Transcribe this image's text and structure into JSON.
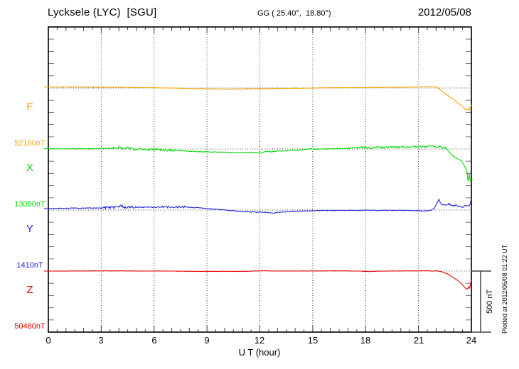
{
  "header": {
    "station": "Lycksele (LYC)  [SGU]",
    "coordinates": "GG ( 25.40°,  18.80°)",
    "date": "2012/05/08"
  },
  "xaxis": {
    "label": "U T (hour)",
    "ticks": [
      "0",
      "3",
      "6",
      "9",
      "12",
      "15",
      "18",
      "21",
      "24"
    ]
  },
  "scalebar": {
    "label": "500 nT",
    "span_nT": 500
  },
  "plotted_note": "Plotted at 2012/06/08 01:22 UT",
  "components": [
    {
      "label": "F",
      "value_label": "52160nT",
      "color": "#FFA500"
    },
    {
      "label": "X",
      "value_label": "13050nT",
      "color": "#00DD00"
    },
    {
      "label": "Y",
      "value_label": "1410nT",
      "color": "#2222DD"
    },
    {
      "label": "Z",
      "value_label": "50480nT",
      "color": "#EE0000"
    }
  ],
  "chart_data": {
    "type": "line",
    "title": "Magnetogram Lycksele (LYC) [SGU] 2012/05/08",
    "xlabel": "U T (hour)",
    "x_range_hours": [
      0,
      24
    ],
    "x_major_tick_hours": 3,
    "x_minor_tick_hours": 0.5,
    "y_tick_step_nT": 100,
    "panel_spacing_nT": 500,
    "grid": "dotted vertical every 3 h, dotted horizontal baseline per component",
    "series": [
      {
        "name": "F",
        "baseline_nT": 52160,
        "noise_amp_nT": 1.5,
        "noisy_windows": [],
        "anchors_hour_offset_nT": [
          [
            0,
            8
          ],
          [
            1,
            8
          ],
          [
            2,
            8
          ],
          [
            3,
            7
          ],
          [
            4,
            5
          ],
          [
            5,
            4
          ],
          [
            6,
            2
          ],
          [
            7,
            0
          ],
          [
            8,
            -4
          ],
          [
            9,
            -7
          ],
          [
            10,
            -9
          ],
          [
            11,
            -8
          ],
          [
            12,
            -6
          ],
          [
            13,
            -4
          ],
          [
            14,
            -2
          ],
          [
            15,
            0
          ],
          [
            16,
            2
          ],
          [
            17,
            3
          ],
          [
            18,
            4
          ],
          [
            19,
            5
          ],
          [
            20,
            6
          ],
          [
            21,
            9
          ],
          [
            21.7,
            12
          ],
          [
            22,
            8
          ],
          [
            22.2,
            -10
          ],
          [
            22.5,
            -45
          ],
          [
            22.8,
            -75
          ],
          [
            23.1,
            -105
          ],
          [
            23.35,
            -135
          ],
          [
            23.55,
            -160
          ],
          [
            23.7,
            -180
          ],
          [
            23.8,
            -170
          ],
          [
            23.87,
            -185
          ],
          [
            23.93,
            -165
          ],
          [
            24,
            -140
          ]
        ]
      },
      {
        "name": "X",
        "baseline_nT": 13050,
        "noise_amp_nT": 3,
        "noisy_windows": [
          [
            3.6,
            7.2,
            6
          ],
          [
            17,
            22.6,
            4
          ]
        ],
        "anchors_hour_offset_nT": [
          [
            0,
            2
          ],
          [
            1,
            2
          ],
          [
            2,
            3
          ],
          [
            3,
            4
          ],
          [
            3.8,
            8
          ],
          [
            4,
            14
          ],
          [
            4.2,
            4
          ],
          [
            4.5,
            8
          ],
          [
            4.8,
            -2
          ],
          [
            5.2,
            2
          ],
          [
            5.6,
            -6
          ],
          [
            6,
            -4
          ],
          [
            6.5,
            -8
          ],
          [
            7,
            -10
          ],
          [
            7.5,
            -14
          ],
          [
            8,
            -18
          ],
          [
            9,
            -24
          ],
          [
            10,
            -26
          ],
          [
            10.8,
            -30
          ],
          [
            11.3,
            -28
          ],
          [
            11.8,
            -26
          ],
          [
            12.1,
            -34
          ],
          [
            12.3,
            -18
          ],
          [
            12.6,
            -22
          ],
          [
            13,
            -18
          ],
          [
            13.5,
            -14
          ],
          [
            14,
            -10
          ],
          [
            14.5,
            -6
          ],
          [
            14.8,
            2
          ],
          [
            15.2,
            -2
          ],
          [
            15.6,
            0
          ],
          [
            16,
            2
          ],
          [
            16.5,
            4
          ],
          [
            17,
            6
          ],
          [
            17.5,
            10
          ],
          [
            18,
            14
          ],
          [
            18.3,
            8
          ],
          [
            18.7,
            16
          ],
          [
            19,
            12
          ],
          [
            19.4,
            18
          ],
          [
            19.8,
            14
          ],
          [
            20.2,
            20
          ],
          [
            20.6,
            16
          ],
          [
            21,
            22
          ],
          [
            21.4,
            18
          ],
          [
            21.7,
            24
          ],
          [
            22,
            14
          ],
          [
            22.2,
            26
          ],
          [
            22.35,
            6
          ],
          [
            22.5,
            16
          ],
          [
            22.7,
            -20
          ],
          [
            23,
            -60
          ],
          [
            23.2,
            -80
          ],
          [
            23.45,
            -95
          ],
          [
            23.6,
            -140
          ],
          [
            23.75,
            -175
          ],
          [
            23.82,
            -290
          ],
          [
            23.88,
            -200
          ],
          [
            23.94,
            -275
          ],
          [
            24,
            -245
          ]
        ]
      },
      {
        "name": "Y",
        "baseline_nT": 1410,
        "noise_amp_nT": 3,
        "noisy_windows": [
          [
            3.2,
            5,
            7
          ],
          [
            6.3,
            7.8,
            5
          ],
          [
            21.9,
            24,
            4
          ]
        ],
        "anchors_hour_offset_nT": [
          [
            0,
            12
          ],
          [
            0.5,
            13
          ],
          [
            1,
            14
          ],
          [
            1.5,
            15
          ],
          [
            2,
            16
          ],
          [
            2.5,
            17
          ],
          [
            3,
            18
          ],
          [
            3.5,
            20
          ],
          [
            4,
            24
          ],
          [
            4.15,
            38
          ],
          [
            4.3,
            20
          ],
          [
            4.6,
            26
          ],
          [
            5,
            22
          ],
          [
            5.5,
            24
          ],
          [
            6,
            23
          ],
          [
            6.5,
            26
          ],
          [
            7,
            24
          ],
          [
            7.5,
            26
          ],
          [
            8,
            22
          ],
          [
            8.5,
            18
          ],
          [
            9,
            12
          ],
          [
            9.5,
            6
          ],
          [
            10,
            0
          ],
          [
            10.5,
            -6
          ],
          [
            11,
            -12
          ],
          [
            11.5,
            -16
          ],
          [
            12,
            -18
          ],
          [
            12.5,
            -20
          ],
          [
            12.8,
            -26
          ],
          [
            13,
            -18
          ],
          [
            13.5,
            -14
          ],
          [
            14,
            -10
          ],
          [
            14.5,
            -8
          ],
          [
            15,
            -6
          ],
          [
            15.5,
            -4
          ],
          [
            16,
            -3
          ],
          [
            16.5,
            -2
          ],
          [
            17,
            -2
          ],
          [
            17.5,
            -3
          ],
          [
            18,
            -2
          ],
          [
            18.5,
            -3
          ],
          [
            19,
            -2
          ],
          [
            19.5,
            -3
          ],
          [
            20,
            -2
          ],
          [
            20.5,
            -4
          ],
          [
            21,
            -6
          ],
          [
            21.3,
            -8
          ],
          [
            21.6,
            -4
          ],
          [
            21.9,
            10
          ],
          [
            22.05,
            55
          ],
          [
            22.15,
            88
          ],
          [
            22.3,
            45
          ],
          [
            22.5,
            38
          ],
          [
            22.7,
            50
          ],
          [
            22.9,
            35
          ],
          [
            23.1,
            42
          ],
          [
            23.3,
            30
          ],
          [
            23.5,
            25
          ],
          [
            23.7,
            35
          ],
          [
            23.85,
            28
          ],
          [
            23.95,
            60
          ],
          [
            24,
            90
          ]
        ]
      },
      {
        "name": "Z",
        "baseline_nT": 50480,
        "noise_amp_nT": 1.2,
        "noisy_windows": [],
        "anchors_hour_offset_nT": [
          [
            0,
            0
          ],
          [
            2,
            1
          ],
          [
            4,
            2
          ],
          [
            5,
            0
          ],
          [
            6,
            1
          ],
          [
            8,
            -2
          ],
          [
            9,
            -3
          ],
          [
            10,
            -2
          ],
          [
            11,
            -3
          ],
          [
            12,
            2
          ],
          [
            12.3,
            4
          ],
          [
            12.6,
            0
          ],
          [
            13,
            1
          ],
          [
            14,
            0
          ],
          [
            15,
            1
          ],
          [
            16,
            2
          ],
          [
            17,
            1
          ],
          [
            18,
            -2
          ],
          [
            18.3,
            -4
          ],
          [
            18.6,
            -1
          ],
          [
            19,
            0
          ],
          [
            20,
            1
          ],
          [
            21,
            2
          ],
          [
            21.5,
            3
          ],
          [
            21.8,
            0
          ],
          [
            22,
            2
          ],
          [
            22.3,
            -5
          ],
          [
            22.6,
            -20
          ],
          [
            22.9,
            -45
          ],
          [
            23.2,
            -75
          ],
          [
            23.45,
            -105
          ],
          [
            23.6,
            -130
          ],
          [
            23.7,
            -145
          ],
          [
            23.78,
            -150
          ],
          [
            23.84,
            -130
          ],
          [
            23.9,
            -145
          ],
          [
            23.95,
            -110
          ],
          [
            24,
            -65
          ]
        ]
      }
    ]
  }
}
